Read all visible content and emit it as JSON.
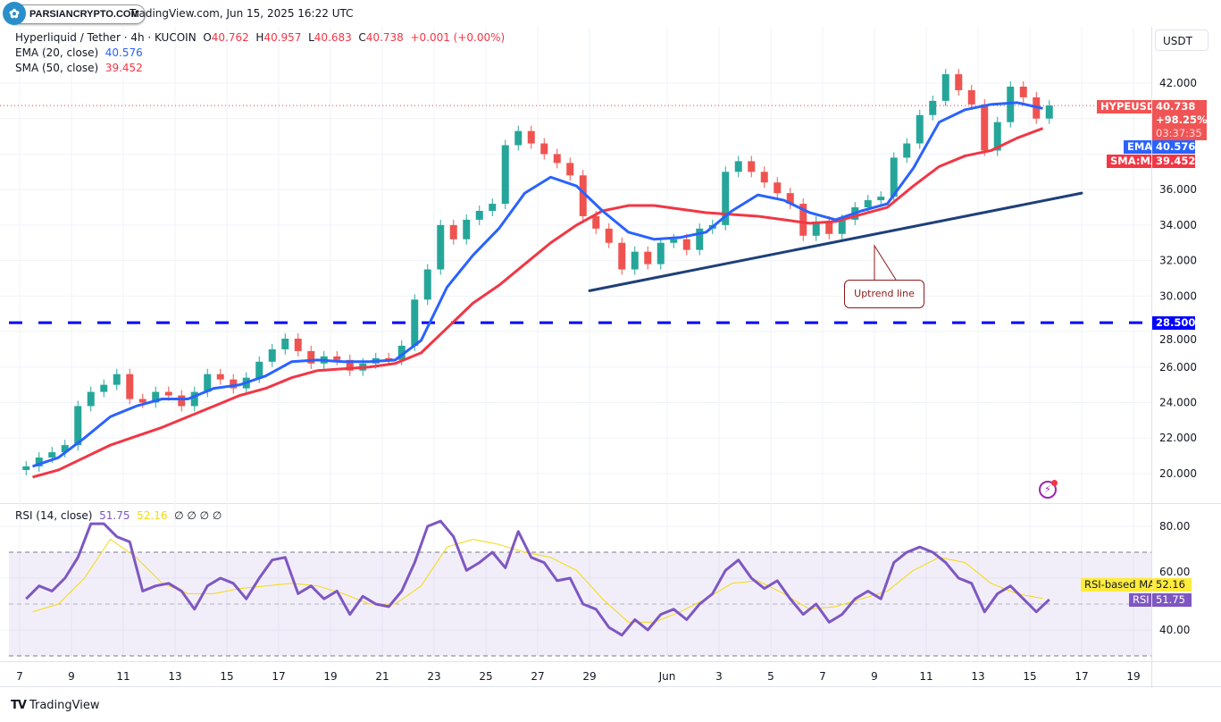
{
  "header": {
    "logo_text": "PARSIANCRYPTO.COM",
    "source": "TradingView.com, Jun 15, 2025 16:22 UTC"
  },
  "legend": {
    "symbol": "Hyperliquid / Tether · 4h · KUCOIN",
    "o_label": "O",
    "o": "40.762",
    "h_label": "H",
    "h": "40.957",
    "l_label": "L",
    "l": "40.683",
    "c_label": "C",
    "c": "40.738",
    "change": "+0.001 (+0.00%)",
    "ema_label": "EMA (20, close)",
    "ema_value": "40.576",
    "sma_label": "SMA (50, close)",
    "sma_value": "39.452",
    "rsi_label": "RSI (14, close)",
    "rsi_value": "51.75",
    "rsi_ma_value": "52.16",
    "rsi_extra": "∅ ∅ ∅ ∅"
  },
  "price_axis": {
    "currency_button": "USDT",
    "ticks": [
      "42.000",
      "36.000",
      "34.000",
      "32.000",
      "30.000",
      "28.000",
      "26.000",
      "24.000",
      "22.000",
      "20.000"
    ],
    "tags": {
      "symbol": "HYPEUSDT",
      "price": "40.738",
      "pct": "+98.25%",
      "countdown": "03:37:35",
      "ema_label": "EMA",
      "ema": "40.576",
      "sma_label": "SMA:MA",
      "sma": "39.452",
      "level": "28.500"
    }
  },
  "rsi_axis": {
    "ticks": [
      "80.00",
      "60.00",
      "40.00"
    ],
    "tags": {
      "ma_label": "RSI-based MA",
      "ma": "52.16",
      "rsi_label": "RSI",
      "rsi": "51.75"
    }
  },
  "time_axis": {
    "ticks": [
      {
        "label": "7",
        "date": "2025-05-07"
      },
      {
        "label": "9",
        "date": "2025-05-09"
      },
      {
        "label": "11",
        "date": "2025-05-11"
      },
      {
        "label": "13",
        "date": "2025-05-13"
      },
      {
        "label": "15",
        "date": "2025-05-15"
      },
      {
        "label": "17",
        "date": "2025-05-17"
      },
      {
        "label": "19",
        "date": "2025-05-19"
      },
      {
        "label": "21",
        "date": "2025-05-21"
      },
      {
        "label": "23",
        "date": "2025-05-23"
      },
      {
        "label": "25",
        "date": "2025-05-25"
      },
      {
        "label": "27",
        "date": "2025-05-27"
      },
      {
        "label": "29",
        "date": "2025-05-29"
      },
      {
        "label": "Jun",
        "date": "2025-06-01"
      },
      {
        "label": "3",
        "date": "2025-06-03"
      },
      {
        "label": "5",
        "date": "2025-06-05"
      },
      {
        "label": "7",
        "date": "2025-06-07"
      },
      {
        "label": "9",
        "date": "2025-06-09"
      },
      {
        "label": "11",
        "date": "2025-06-11"
      },
      {
        "label": "13",
        "date": "2025-06-13"
      },
      {
        "label": "15",
        "date": "2025-06-15"
      },
      {
        "label": "17",
        "date": "2025-06-17"
      },
      {
        "label": "19",
        "date": "2025-06-19"
      }
    ]
  },
  "annotation": {
    "text": "Uptrend line"
  },
  "footer": {
    "brand": "TradingView"
  },
  "colors": {
    "up": "#26a69a",
    "down": "#ef5350",
    "ema": "#2962ff",
    "sma": "#f23645",
    "rsi": "#7e57c2",
    "rsi_ma": "#f5d90a",
    "level": "#0000ff",
    "trendline": "#1e3f7a",
    "annotation": "#8b1a1a"
  },
  "chart_data": {
    "type": "candlestick",
    "symbol": "HYPEUSDT",
    "x_start": "2025-05-07 00:00",
    "interval": "12h",
    "ylim": [
      19,
      44
    ],
    "grid": true,
    "close": [
      20.4,
      20.9,
      21.2,
      21.6,
      23.8,
      24.6,
      25.0,
      25.6,
      24.2,
      24.0,
      24.6,
      24.4,
      23.8,
      24.6,
      25.6,
      25.3,
      24.8,
      25.4,
      26.3,
      27.0,
      27.6,
      26.9,
      26.2,
      26.6,
      26.4,
      25.8,
      26.2,
      26.5,
      26.4,
      27.2,
      29.8,
      31.5,
      34.0,
      33.2,
      34.3,
      34.8,
      35.2,
      38.5,
      39.3,
      38.6,
      38.0,
      37.5,
      36.8,
      34.5,
      33.8,
      33.0,
      31.5,
      32.5,
      31.8,
      33.0,
      33.2,
      32.6,
      33.8,
      34.0,
      37.0,
      37.6,
      37.0,
      36.4,
      35.8,
      35.2,
      33.4,
      34.2,
      33.5,
      34.3,
      35.0,
      35.4,
      35.6,
      37.8,
      38.6,
      40.2,
      41.0,
      42.5,
      41.6,
      40.8,
      38.2,
      39.8,
      41.8,
      41.2,
      40.0,
      40.738
    ],
    "ema20": {
      "interval": "1d",
      "values": [
        20.4,
        20.9,
        22.0,
        23.2,
        23.8,
        24.2,
        24.2,
        24.8,
        25.0,
        25.5,
        26.3,
        26.4,
        26.3,
        26.3,
        26.4,
        27.5,
        30.5,
        32.3,
        33.8,
        35.8,
        36.7,
        36.2,
        34.8,
        33.6,
        33.2,
        33.3,
        33.6,
        34.8,
        35.7,
        35.4,
        34.7,
        34.3,
        34.8,
        35.2,
        37.2,
        39.8,
        40.5,
        40.8,
        40.9,
        40.576
      ]
    },
    "sma50": {
      "interval": "1d",
      "values": [
        19.8,
        20.2,
        20.9,
        21.6,
        22.1,
        22.6,
        23.2,
        23.8,
        24.4,
        24.8,
        25.4,
        25.8,
        25.9,
        26.0,
        26.2,
        26.8,
        28.2,
        29.6,
        30.6,
        31.8,
        33.0,
        34.0,
        34.8,
        35.1,
        35.1,
        34.9,
        34.7,
        34.6,
        34.5,
        34.3,
        34.1,
        34.2,
        34.6,
        35.0,
        36.2,
        37.3,
        37.9,
        38.2,
        38.9,
        39.452
      ]
    },
    "horizontal_level": 28.5,
    "trendline": [
      {
        "date": "2025-05-29",
        "price": 30.3
      },
      {
        "date": "2025-06-17",
        "price": 35.8
      }
    ],
    "rsi": {
      "ylim": [
        25,
        90
      ],
      "bands": [
        30,
        50,
        70
      ],
      "interval": "12h",
      "values": [
        52,
        57,
        55,
        60,
        68,
        81,
        81,
        76,
        74,
        55,
        57,
        58,
        55,
        48,
        57,
        60,
        58,
        52,
        60,
        67,
        68,
        54,
        57,
        52,
        55,
        46,
        53,
        50,
        49,
        55,
        66,
        80,
        82,
        76,
        63,
        66,
        70,
        64,
        78,
        68,
        66,
        59,
        60,
        50,
        48,
        41,
        38,
        44,
        40,
        46,
        48,
        44,
        50,
        54,
        63,
        67,
        60,
        56,
        59,
        52,
        46,
        50,
        43,
        46,
        52,
        55,
        52,
        66,
        70,
        72,
        70,
        66,
        60,
        58,
        47,
        54,
        57,
        52,
        47,
        51.75
      ],
      "ma": {
        "interval": "1d",
        "values": [
          47,
          50,
          60,
          75,
          68,
          58,
          54,
          54,
          56,
          57,
          58,
          57,
          54,
          50,
          50,
          57,
          72,
          75,
          73,
          70,
          68,
          63,
          52,
          43,
          43,
          47,
          52,
          58,
          59,
          54,
          48,
          49,
          52,
          55,
          63,
          68,
          66,
          58,
          54,
          52.16
        ]
      }
    }
  }
}
